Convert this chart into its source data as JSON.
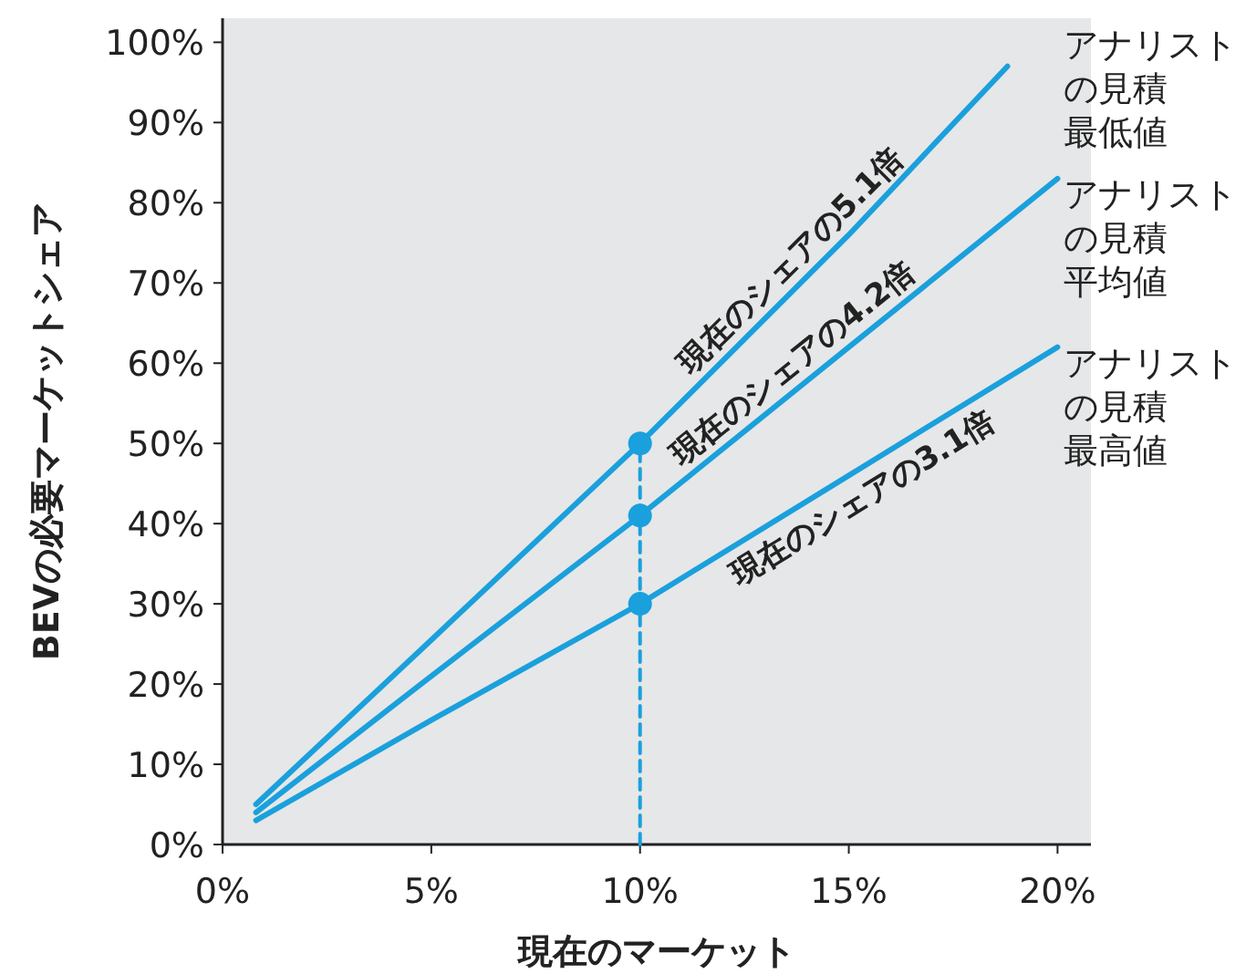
{
  "chart_data": {
    "type": "line",
    "xlabel": "現在のマーケット",
    "ylabel": "BEVの必要マーケットシェア",
    "xlim": [
      0,
      20.8
    ],
    "ylim": [
      0,
      103
    ],
    "xticks": [
      {
        "value": 0,
        "label": "0%"
      },
      {
        "value": 5,
        "label": "5%"
      },
      {
        "value": 10,
        "label": "10%"
      },
      {
        "value": 15,
        "label": "15%"
      },
      {
        "value": 20,
        "label": "20%"
      }
    ],
    "yticks": [
      {
        "value": 0,
        "label": "0%"
      },
      {
        "value": 10,
        "label": "10%"
      },
      {
        "value": 20,
        "label": "20%"
      },
      {
        "value": 30,
        "label": "30%"
      },
      {
        "value": 40,
        "label": "40%"
      },
      {
        "value": 50,
        "label": "50%"
      },
      {
        "value": 60,
        "label": "60%"
      },
      {
        "value": 70,
        "label": "70%"
      },
      {
        "value": 80,
        "label": "80%"
      },
      {
        "value": 90,
        "label": "90%"
      },
      {
        "value": 100,
        "label": "100%"
      }
    ],
    "grid": false,
    "legend": false,
    "marker": "none",
    "series": [
      {
        "name": "現在のシェアの5.1倍",
        "color": "#1aa0dc",
        "x": [
          0.8,
          5,
          10,
          15,
          18.8
        ],
        "values": [
          5,
          25.5,
          50,
          76,
          97
        ]
      },
      {
        "name": "現在のシェアの4.2倍",
        "color": "#1aa0dc",
        "x": [
          0.8,
          5,
          10,
          15,
          20
        ],
        "values": [
          4,
          21,
          41,
          62,
          83
        ]
      },
      {
        "name": "現在のシェアの3.1倍",
        "color": "#1aa0dc",
        "x": [
          0.8,
          5,
          10,
          15,
          20
        ],
        "values": [
          3,
          15.5,
          30,
          46,
          62
        ]
      },
      {
        "type": "line",
        "line_style": "dashed",
        "color": "#1aa0dc",
        "x": [
          10,
          10
        ],
        "values": [
          0,
          50
        ]
      },
      {
        "type": "scatter",
        "marker": "circle",
        "color": "#1aa0dc",
        "x": [
          10,
          10,
          10
        ],
        "values": [
          50,
          41,
          30
        ]
      }
    ],
    "annotations": [
      "アナリストの見積最低値",
      "アナリストの見積平均値",
      "アナリストの見積最高値"
    ]
  }
}
